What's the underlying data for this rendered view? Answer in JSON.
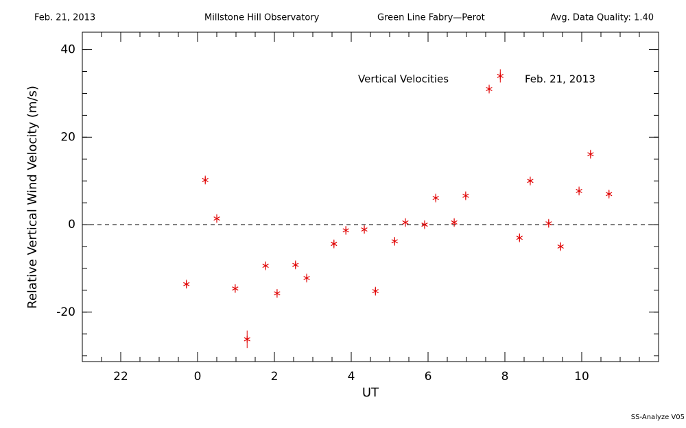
{
  "chart_data": {
    "type": "scatter",
    "header": [
      "Feb. 21, 2013",
      "Millstone Hill Observatory",
      "Green Line Fabry—Perot",
      "Avg. Data Quality: 1.40"
    ],
    "annotations": [
      "Vertical Velocities",
      "Feb. 21, 2013"
    ],
    "xlabel": "UT",
    "ylabel": "Relative Vertical Wind Velocity (m/s)",
    "footer": "SS-Analyze V05",
    "xlim": [
      -3,
      12
    ],
    "ylim": [
      -31.3,
      44
    ],
    "xticks": [
      {
        "value": -2,
        "label": "22"
      },
      0,
      2,
      4,
      6,
      8,
      10
    ],
    "yticks": [
      -20,
      0,
      20,
      40
    ],
    "reference_line": 0,
    "color": "#e00000",
    "x": [
      -0.29,
      0.2,
      0.5,
      0.98,
      1.29,
      1.77,
      2.07,
      2.55,
      2.84,
      3.55,
      3.86,
      4.34,
      4.63,
      5.13,
      5.41,
      5.91,
      6.2,
      6.68,
      6.98,
      7.59,
      7.88,
      8.38,
      8.66,
      9.14,
      9.45,
      9.93,
      10.23,
      10.71
    ],
    "values": [
      -13.6,
      10.2,
      1.4,
      -14.6,
      -26.2,
      -9.4,
      -15.7,
      -9.2,
      -12.2,
      -4.4,
      -1.3,
      -1.1,
      -15.2,
      -3.8,
      0.5,
      0.0,
      6.1,
      0.5,
      6.6,
      31.0,
      34.0,
      -3.0,
      10.0,
      0.3,
      -5.0,
      7.7,
      16.1,
      7.0
    ],
    "errors": [
      1.0,
      1.0,
      1.0,
      1.0,
      2.0,
      1.0,
      1.0,
      1.0,
      1.0,
      1.0,
      1.0,
      1.0,
      1.0,
      1.0,
      1.0,
      1.0,
      1.0,
      1.0,
      1.0,
      1.0,
      1.5,
      1.0,
      1.0,
      1.0,
      1.0,
      1.0,
      1.0,
      1.0
    ]
  }
}
